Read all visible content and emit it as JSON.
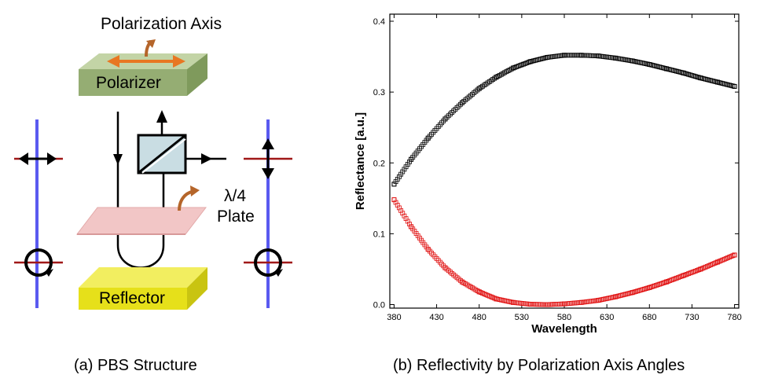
{
  "diagram": {
    "polarization_axis_label": "Polarization Axis",
    "polarizer_label": "Polarizer",
    "plate_label_line1": "λ/4",
    "plate_label_line2": "Plate",
    "reflector_label": "Reflector",
    "caption": "(a) PBS Structure",
    "colors": {
      "polarizer": "#9bb47a",
      "plate": "#f2c6c6",
      "reflector": "#e6e01a",
      "axis_arrow": "#e87722",
      "curved_arrow": "#b5652a",
      "beam_line": "#5a5af0",
      "tick_line": "#a01818",
      "prism": "#c9dde3"
    }
  },
  "chart_caption": "(b) Reflectivity by Polarization Axis Angles",
  "chart_data": {
    "type": "scatter",
    "title": "",
    "xlabel": "Wavelength",
    "ylabel": "Reflectance [a.u.]",
    "xlim": [
      375,
      785
    ],
    "ylim": [
      -0.005,
      0.41
    ],
    "xticks": [
      "380",
      "430",
      "480",
      "530",
      "580",
      "630",
      "680",
      "730",
      "780"
    ],
    "yticks": [
      "0.0",
      "0.1",
      "0.2",
      "0.3",
      "0.4"
    ],
    "grid": false,
    "series": [
      {
        "color": "#000000",
        "marker": "square-open",
        "x": [
          380,
          400,
          420,
          440,
          460,
          480,
          500,
          520,
          540,
          560,
          580,
          600,
          620,
          640,
          660,
          680,
          700,
          720,
          740,
          760,
          780
        ],
        "y": [
          0.17,
          0.205,
          0.235,
          0.262,
          0.285,
          0.305,
          0.321,
          0.334,
          0.343,
          0.349,
          0.352,
          0.352,
          0.351,
          0.348,
          0.344,
          0.339,
          0.333,
          0.327,
          0.32,
          0.314,
          0.308
        ]
      },
      {
        "color": "#e01010",
        "marker": "square-open",
        "x": [
          380,
          400,
          420,
          440,
          460,
          480,
          500,
          520,
          540,
          560,
          580,
          600,
          620,
          640,
          660,
          680,
          700,
          720,
          740,
          760,
          780
        ],
        "y": [
          0.148,
          0.11,
          0.078,
          0.052,
          0.032,
          0.018,
          0.008,
          0.003,
          0.0005,
          0.0,
          0.001,
          0.003,
          0.006,
          0.011,
          0.017,
          0.024,
          0.032,
          0.041,
          0.05,
          0.06,
          0.07
        ]
      }
    ]
  }
}
